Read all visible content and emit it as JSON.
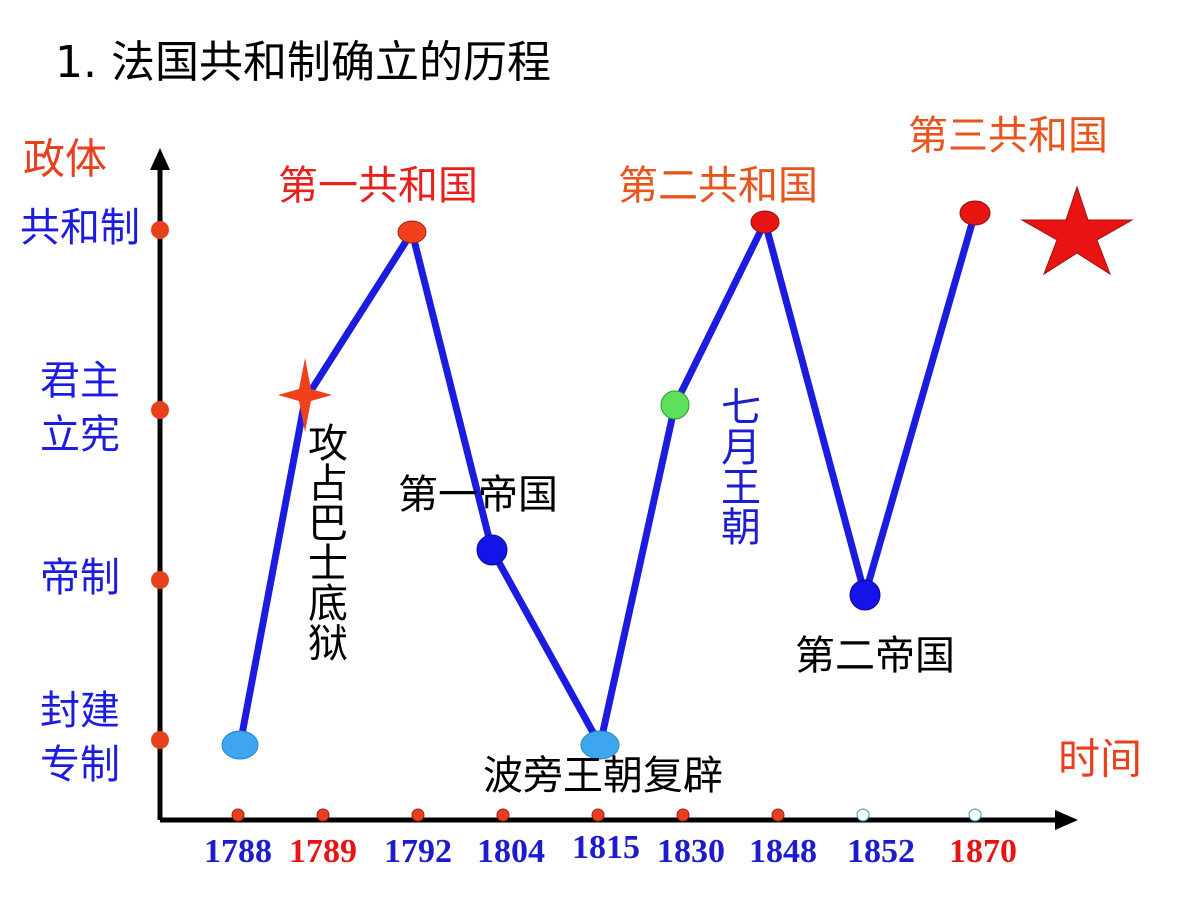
{
  "title": "1. 法国共和制确立的历程",
  "y_axis": {
    "title": "政体",
    "levels": [
      [
        "共和制"
      ],
      [
        "君主",
        "立宪"
      ],
      [
        "帝制"
      ],
      [
        "封建",
        "专制"
      ]
    ]
  },
  "x_axis": {
    "title": "时间",
    "years": [
      "1788",
      "1789",
      "1792",
      "1804",
      "1815",
      "1830",
      "1848",
      "1852",
      "1870"
    ]
  },
  "annotations": {
    "first_republic": "第一共和国",
    "second_republic": "第二共和国",
    "third_republic": "第三共和国",
    "first_empire": "第一帝国",
    "second_empire": "第二帝国",
    "bourbon_restoration": "波旁王朝复辟",
    "bastille": "攻占巴士底狱",
    "july_monarchy": "七月王朝"
  }
}
